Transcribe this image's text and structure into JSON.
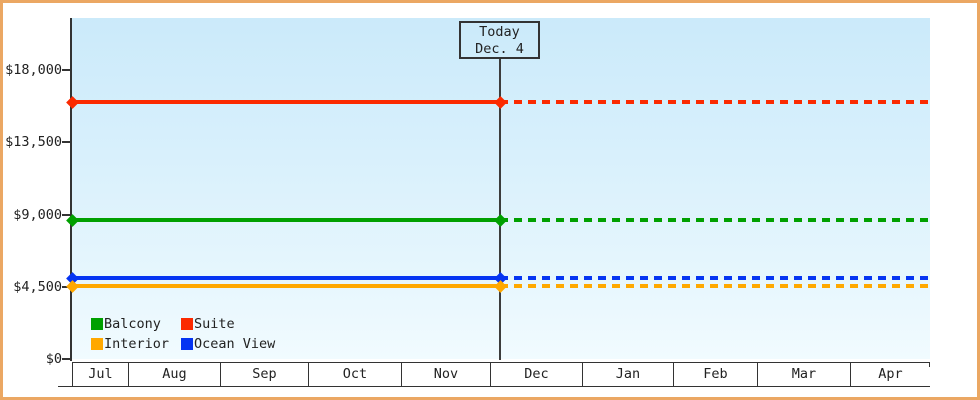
{
  "frame": {
    "border_color": "#ebA763"
  },
  "chart_data": {
    "type": "line",
    "title": "",
    "description": "Cabin price chart: horizontal price lines per cabin category, solid history left of today, dotted projection right of today",
    "x_axis": {
      "tick_labels": [
        "Jul",
        "Aug",
        "Sep",
        "Oct",
        "Nov",
        "Dec",
        "Jan",
        "Feb",
        "Mar",
        "Apr"
      ]
    },
    "y_axis": {
      "min": 0,
      "max": 18000,
      "tick_labels": [
        "$18,000",
        "$13,500",
        "$9,000",
        "$4,500",
        "$0"
      ],
      "tick_values": [
        18000,
        13500,
        9000,
        4500,
        0
      ]
    },
    "series": [
      {
        "name": "Suite",
        "color": "#fb2a00",
        "value": 16000
      },
      {
        "name": "Balcony",
        "color": "#00a000",
        "value": 8670
      },
      {
        "name": "Ocean View",
        "color": "#0534f2",
        "value": 5060
      },
      {
        "name": "Interior",
        "color": "#ffa800",
        "value": 4560
      }
    ],
    "legend": {
      "position": "bottom-left",
      "order": [
        "Balcony",
        "Suite",
        "Interior",
        "Ocean View"
      ]
    },
    "annotation": {
      "line1": "Today",
      "line2": "Dec. 4"
    },
    "grid": "off"
  }
}
